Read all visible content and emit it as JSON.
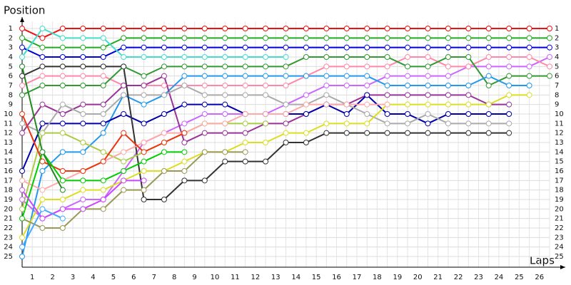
{
  "chart_data": {
    "type": "line",
    "y_label": "Position",
    "x_label": "Laps",
    "inverted": true,
    "grid": true,
    "xlim": [
      0,
      26
    ],
    "ylim": [
      0,
      26
    ],
    "x": [
      0,
      1,
      2,
      3,
      4,
      5,
      6,
      7,
      8,
      9,
      10,
      11,
      12,
      13,
      14,
      15,
      16,
      17,
      18,
      19,
      20,
      21,
      22,
      23,
      24,
      25,
      26
    ],
    "xticks": [
      {
        "value": 0.5,
        "label": "1"
      },
      {
        "value": 1.5,
        "label": "2"
      },
      {
        "value": 2.5,
        "label": "3"
      },
      {
        "value": 3.5,
        "label": "4"
      },
      {
        "value": 4.5,
        "label": "5"
      },
      {
        "value": 5.5,
        "label": "6"
      },
      {
        "value": 6.5,
        "label": "7"
      },
      {
        "value": 7.5,
        "label": "8"
      },
      {
        "value": 8.5,
        "label": "9"
      },
      {
        "value": 9.5,
        "label": "10"
      },
      {
        "value": 10.5,
        "label": "11"
      },
      {
        "value": 11.5,
        "label": "12"
      },
      {
        "value": 12.5,
        "label": "13"
      },
      {
        "value": 13.5,
        "label": "14"
      },
      {
        "value": 14.5,
        "label": "15"
      },
      {
        "value": 15.5,
        "label": "16"
      },
      {
        "value": 16.5,
        "label": "17"
      },
      {
        "value": 17.5,
        "label": "18"
      },
      {
        "value": 18.5,
        "label": "19"
      },
      {
        "value": 19.5,
        "label": "20"
      },
      {
        "value": 20.5,
        "label": "21"
      },
      {
        "value": 21.5,
        "label": "22"
      },
      {
        "value": 22.5,
        "label": "23"
      },
      {
        "value": 23.5,
        "label": "24"
      },
      {
        "value": 24.5,
        "label": "25"
      },
      {
        "value": 25.5,
        "label": "26"
      }
    ],
    "yticks": [
      1,
      2,
      3,
      4,
      5,
      6,
      7,
      8,
      9,
      10,
      11,
      12,
      13,
      14,
      15,
      16,
      17,
      18,
      19,
      20,
      21,
      22,
      23,
      24,
      25
    ],
    "series": [
      {
        "color": "#ee1111",
        "values": [
          1,
          2,
          1,
          1,
          1,
          1,
          1,
          1,
          1,
          1,
          1,
          1,
          1,
          1,
          1,
          1,
          1,
          1,
          1,
          1,
          1,
          1,
          1,
          1,
          1,
          1,
          1
        ]
      },
      {
        "color": "#22aa22",
        "values": [
          2,
          3,
          3,
          3,
          3,
          2,
          2,
          2,
          2,
          2,
          2,
          2,
          2,
          2,
          2,
          2,
          2,
          2,
          2,
          2,
          2,
          2,
          2,
          2,
          2,
          2,
          2
        ]
      },
      {
        "color": "#0000dd",
        "values": [
          3,
          4,
          4,
          4,
          4,
          3,
          3,
          3,
          3,
          3,
          3,
          3,
          3,
          3,
          3,
          3,
          3,
          3,
          3,
          3,
          3,
          3,
          3,
          3,
          3,
          3,
          3
        ]
      },
      {
        "color": "#44ddcc",
        "values": [
          4,
          1,
          2,
          2,
          2,
          4,
          4,
          4,
          4,
          4,
          4,
          4,
          4,
          4,
          null,
          null,
          null,
          null,
          null,
          null,
          null,
          null,
          null,
          null,
          null,
          null,
          null
        ]
      },
      {
        "color": "#cc66ff",
        "values": [
          19,
          21,
          20,
          19,
          19,
          16,
          13,
          12,
          11,
          10,
          10,
          10,
          10,
          9,
          8,
          7,
          7,
          7,
          6,
          6,
          6,
          6,
          5,
          5,
          5,
          5,
          4
        ]
      },
      {
        "color": "#ff88aa",
        "values": [
          7,
          6,
          6,
          6,
          6,
          7,
          7,
          7,
          7,
          7,
          7,
          7,
          7,
          7,
          6,
          5,
          5,
          5,
          5,
          4,
          4,
          5,
          5,
          4,
          4,
          4,
          5
        ]
      },
      {
        "color": "#339933",
        "values": [
          8,
          7,
          7,
          7,
          7,
          5,
          6,
          5,
          5,
          5,
          5,
          5,
          5,
          5,
          4,
          4,
          4,
          4,
          4,
          5,
          5,
          4,
          4,
          7,
          6,
          6,
          6
        ]
      },
      {
        "color": "#2299ee",
        "values": [
          25,
          16,
          14,
          14,
          12,
          8,
          9,
          8,
          6,
          6,
          6,
          6,
          6,
          6,
          6,
          6,
          6,
          6,
          7,
          7,
          7,
          7,
          7,
          6,
          7,
          7,
          null
        ]
      },
      {
        "color": "#993399",
        "values": [
          12,
          9,
          10,
          9,
          9,
          7,
          7,
          6,
          13,
          12,
          12,
          12,
          11,
          11,
          10,
          9,
          9,
          8,
          8,
          8,
          8,
          8,
          8,
          9,
          9,
          null,
          null
        ]
      },
      {
        "color": "#0000aa",
        "values": [
          16,
          11,
          11,
          11,
          11,
          10,
          11,
          10,
          9,
          9,
          9,
          10,
          10,
          10,
          10,
          9,
          10,
          8,
          10,
          10,
          11,
          10,
          10,
          10,
          10,
          null,
          null
        ]
      },
      {
        "color": "#aaaaaa",
        "values": [
          11,
          12,
          9,
          10,
          10,
          8,
          8,
          8,
          7,
          8,
          8,
          8,
          8,
          9,
          9,
          8,
          9,
          10,
          11,
          11,
          10,
          11,
          11,
          11,
          11,
          null,
          null
        ]
      },
      {
        "color": "#333333",
        "values": [
          6,
          5,
          5,
          5,
          5,
          5,
          19,
          19,
          17,
          17,
          15,
          15,
          15,
          13,
          13,
          12,
          12,
          12,
          12,
          12,
          12,
          12,
          12,
          12,
          12,
          null,
          null
        ]
      },
      {
        "color": "#dddd22",
        "values": [
          23,
          19,
          19,
          18,
          18,
          17,
          16,
          16,
          15,
          14,
          14,
          13,
          13,
          12,
          12,
          11,
          11,
          11,
          9,
          9,
          9,
          9,
          9,
          9,
          8,
          8,
          null
        ]
      },
      {
        "color": "#999955",
        "values": [
          21,
          22,
          22,
          20,
          20,
          18,
          18,
          16,
          16,
          14,
          14,
          14,
          null,
          null,
          null,
          null,
          null,
          null,
          null,
          null,
          null,
          null,
          null,
          null,
          null,
          null,
          null
        ]
      },
      {
        "color": "#aacc44",
        "values": [
          20,
          12,
          12,
          13,
          14,
          15,
          14,
          13,
          12,
          11,
          11,
          11,
          11,
          null,
          null,
          null,
          null,
          null,
          null,
          null,
          null,
          null,
          null,
          null,
          null,
          null,
          null
        ]
      },
      {
        "color": "#ffaaaa",
        "values": [
          17,
          18,
          17,
          16,
          15,
          14,
          13,
          12,
          12,
          11,
          11,
          10,
          10,
          10,
          9,
          9,
          9,
          9,
          9,
          null,
          null,
          null,
          null,
          null,
          null,
          null,
          null
        ]
      },
      {
        "color": "#ee3311",
        "values": [
          10,
          15,
          16,
          16,
          15,
          12,
          14,
          13,
          12,
          null,
          null,
          null,
          null,
          null,
          null,
          null,
          null,
          null,
          null,
          null,
          null,
          null,
          null,
          null,
          null,
          null,
          null
        ]
      },
      {
        "color": "#00cc00",
        "values": [
          21,
          14,
          17,
          17,
          17,
          16,
          15,
          14,
          14,
          null,
          null,
          null,
          null,
          null,
          null,
          null,
          null,
          null,
          null,
          null,
          null,
          null,
          null,
          null,
          null,
          null,
          null
        ]
      },
      {
        "color": "#228822",
        "values": [
          5,
          14,
          18,
          null,
          null,
          null,
          null,
          null,
          null,
          null,
          null,
          null,
          null,
          null,
          null,
          null,
          null,
          null,
          null,
          null,
          null,
          null,
          null,
          null,
          null,
          null,
          null
        ]
      },
      {
        "color": "#cc44ff",
        "values": [
          18,
          21,
          20,
          20,
          19,
          17,
          17,
          null,
          null,
          null,
          null,
          null,
          null,
          null,
          null,
          null,
          null,
          null,
          null,
          null,
          null,
          null,
          null,
          null,
          null,
          null,
          null
        ]
      },
      {
        "color": "#44aaff",
        "values": [
          24,
          20,
          21,
          null,
          null,
          null,
          null,
          null,
          null,
          null,
          null,
          null,
          null,
          null,
          null,
          null,
          null,
          null,
          null,
          null,
          null,
          null,
          null,
          null,
          null,
          null,
          null
        ]
      }
    ]
  }
}
